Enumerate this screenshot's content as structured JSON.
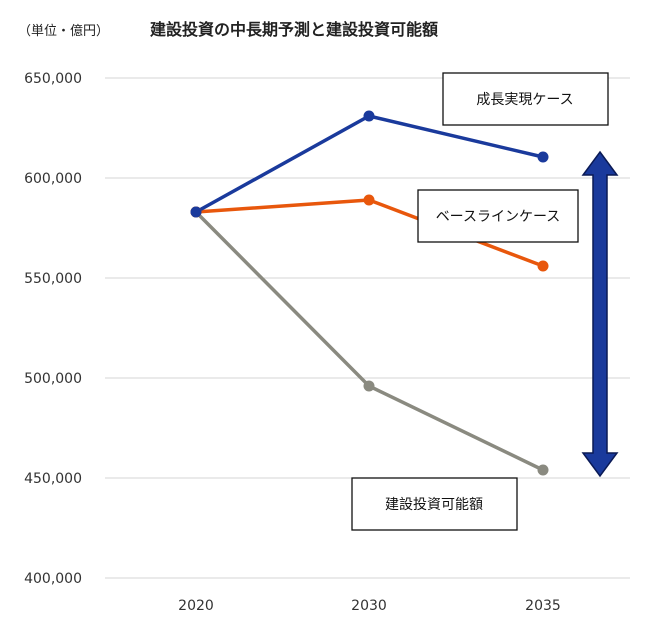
{
  "chart_data": {
    "type": "line",
    "title": "建設投資の中長期予測と建設投資可能額",
    "unit_label": "（単位・億円）",
    "categories": [
      "2020",
      "2030",
      "2035"
    ],
    "ylim": [
      400000,
      650000
    ],
    "yticks": [
      400000,
      450000,
      500000,
      550000,
      600000,
      650000
    ],
    "ytick_labels": [
      "400,000",
      "450,000",
      "500,000",
      "550,000",
      "600,000",
      "650,000"
    ],
    "grid": true,
    "series": [
      {
        "name": "成長実現ケース",
        "color": "#1a3a9c",
        "values": [
          583000,
          631000,
          610500
        ]
      },
      {
        "name": "ベースラインケース",
        "color": "#e8570c",
        "values": [
          583000,
          589000,
          556000
        ]
      },
      {
        "name": "建設投資可能額",
        "color": "#8a8a80",
        "values": [
          583000,
          496000,
          454000
        ]
      }
    ],
    "range_arrow": {
      "from": 609000,
      "to": 455000,
      "color": "#1a3a9c"
    }
  }
}
